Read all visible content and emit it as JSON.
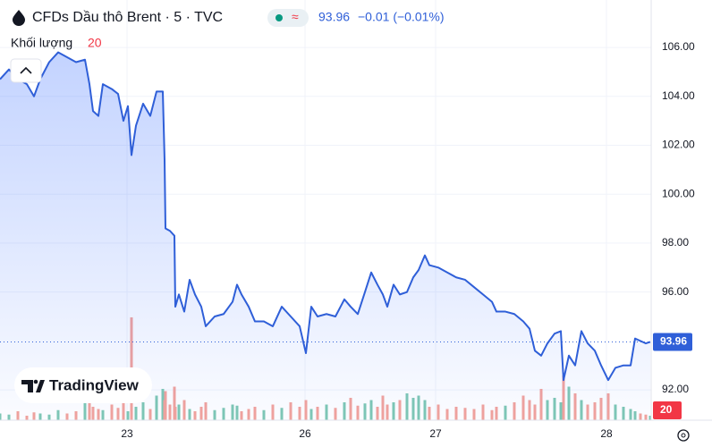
{
  "chart_data": {
    "type": "area",
    "title": "CFDs Dầu thô Brent · 5 · TVC",
    "change": "−0.01 (−0.01%)",
    "volume_label": "Khối lượng",
    "logo": "TradingView",
    "x": [
      0,
      10,
      20,
      30,
      38,
      45,
      55,
      65,
      75,
      85,
      95,
      100,
      104,
      110,
      115,
      125,
      132,
      138,
      143,
      147,
      152,
      160,
      168,
      175,
      182,
      184,
      185,
      190,
      195,
      196,
      200,
      206,
      212,
      218,
      225,
      230,
      240,
      250,
      260,
      265,
      270,
      278,
      285,
      295,
      305,
      315,
      325,
      335,
      342,
      348,
      355,
      365,
      375,
      385,
      392,
      400,
      408,
      415,
      422,
      428,
      433,
      440,
      447,
      455,
      462,
      468,
      475,
      480,
      490,
      500,
      510,
      520,
      530,
      540,
      550,
      555,
      565,
      575,
      585,
      592,
      598,
      605,
      612,
      620,
      627,
      630,
      636,
      643,
      650,
      657,
      665,
      672,
      680,
      688,
      697,
      705,
      710,
      716,
      722,
      727
    ],
    "series": [
      {
        "name": "Brent",
        "color": "#2f5fd8",
        "values": [
          104.7,
          105.1,
          104.7,
          104.5,
          104.0,
          104.7,
          105.4,
          105.8,
          105.6,
          105.4,
          105.5,
          104.5,
          103.4,
          103.2,
          104.5,
          104.3,
          104.1,
          103.0,
          103.6,
          101.6,
          102.8,
          103.7,
          103.2,
          104.2,
          104.2,
          101.4,
          98.6,
          98.5,
          98.3,
          95.4,
          95.9,
          95.2,
          96.5,
          95.9,
          95.4,
          94.6,
          95.0,
          95.1,
          95.6,
          96.3,
          95.9,
          95.4,
          94.8,
          94.8,
          94.6,
          95.4,
          95.0,
          94.6,
          93.5,
          95.4,
          95.0,
          95.1,
          95.0,
          95.7,
          95.4,
          95.1,
          96.0,
          96.8,
          96.3,
          95.9,
          95.4,
          96.3,
          95.9,
          96.0,
          96.6,
          96.9,
          97.5,
          97.1,
          97.0,
          96.8,
          96.6,
          96.5,
          96.2,
          95.9,
          95.6,
          95.2,
          95.2,
          95.1,
          94.8,
          94.5,
          93.6,
          93.4,
          93.9,
          94.3,
          94.4,
          92.4,
          93.4,
          93.0,
          94.4,
          93.9,
          93.6,
          93.0,
          92.4,
          92.9,
          93.0,
          93.0,
          94.1,
          94.0,
          93.9,
          93.96
        ]
      }
    ],
    "volume": {
      "up_color": "#7fc8b4",
      "down_color": "#f3a39c",
      "values": [
        30,
        25,
        40,
        20,
        35,
        30,
        25,
        45,
        30,
        40,
        120,
        80,
        60,
        50,
        45,
        70,
        55,
        90,
        40,
        460,
        60,
        80,
        50,
        110,
        140,
        90,
        130,
        70,
        150,
        60,
        70,
        90,
        50,
        40,
        60,
        80,
        45,
        55,
        70,
        65,
        40,
        50,
        60,
        45,
        70,
        55,
        80,
        60,
        90,
        50,
        60,
        70,
        55,
        80,
        100,
        65,
        75,
        90,
        60,
        110,
        70,
        80,
        90,
        120,
        100,
        110,
        90,
        60,
        70,
        50,
        60,
        55,
        50,
        70,
        45,
        60,
        65,
        80,
        110,
        90,
        70,
        140,
        90,
        100,
        80,
        200,
        150,
        120,
        90,
        70,
        80,
        100,
        120,
        70,
        60,
        50,
        40,
        30,
        25,
        20
      ]
    },
    "xlim": [
      0,
      728
    ],
    "xticks": [
      {
        "value": 142,
        "label": "23"
      },
      {
        "value": 341,
        "label": "26"
      },
      {
        "value": 487,
        "label": "27"
      },
      {
        "value": 678,
        "label": "28"
      }
    ],
    "ylim": [
      90.76,
      107.94
    ],
    "yticks": [
      {
        "value": 92,
        "label": "92.00"
      },
      {
        "value": 96,
        "label": "96.00"
      },
      {
        "value": 98,
        "label": "98.00"
      },
      {
        "value": 100,
        "label": "100.00"
      },
      {
        "value": 102,
        "label": "102.00"
      },
      {
        "value": 104,
        "label": "104.00"
      },
      {
        "value": 106,
        "label": "106.00"
      }
    ],
    "y2lim": [
      0,
      600
    ],
    "grid": true
  }
}
